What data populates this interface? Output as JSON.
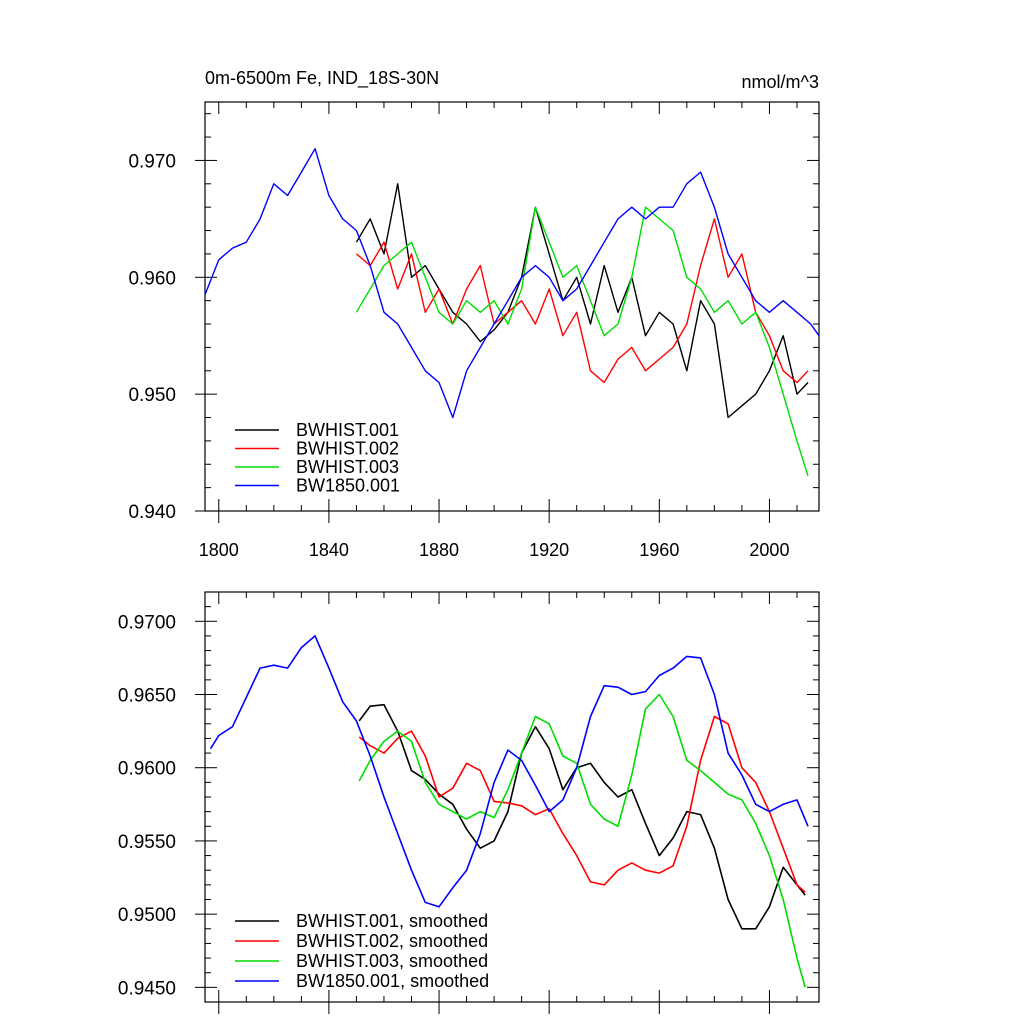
{
  "chart_data": [
    {
      "type": "line",
      "title": "0m-6500m Fe, IND_18S-30N",
      "units": "nmol/m^3",
      "xlim": [
        1795,
        2018
      ],
      "ylim": [
        0.94,
        0.975
      ],
      "xticks": [
        1800,
        1840,
        1880,
        1920,
        1960,
        2000
      ],
      "xtick_labels": [
        "1800",
        "1840",
        "1880",
        "1920",
        "1960",
        "2000"
      ],
      "yticks": [
        0.94,
        0.95,
        0.96,
        0.97
      ],
      "ytick_labels": [
        "0.940",
        "0.950",
        "0.960",
        "0.970"
      ],
      "legend_position": "bottom-left",
      "series": [
        {
          "name": "BWHIST.001",
          "color": "#000000",
          "x": [
            1850,
            1855,
            1860,
            1865,
            1870,
            1875,
            1880,
            1885,
            1890,
            1895,
            1900,
            1905,
            1910,
            1915,
            1920,
            1925,
            1930,
            1935,
            1940,
            1945,
            1950,
            1955,
            1960,
            1965,
            1970,
            1975,
            1980,
            1985,
            1990,
            1995,
            2000,
            2005,
            2010,
            2014
          ],
          "y": [
            0.963,
            0.965,
            0.962,
            0.968,
            0.96,
            0.961,
            0.959,
            0.957,
            0.956,
            0.9545,
            0.9555,
            0.957,
            0.96,
            0.966,
            0.962,
            0.958,
            0.96,
            0.956,
            0.961,
            0.957,
            0.96,
            0.955,
            0.957,
            0.956,
            0.952,
            0.958,
            0.956,
            0.948,
            0.949,
            0.95,
            0.952,
            0.955,
            0.95,
            0.951
          ]
        },
        {
          "name": "BWHIST.002",
          "color": "#ff0000",
          "x": [
            1850,
            1855,
            1860,
            1865,
            1870,
            1875,
            1880,
            1885,
            1890,
            1895,
            1900,
            1905,
            1910,
            1915,
            1920,
            1925,
            1930,
            1935,
            1940,
            1945,
            1950,
            1955,
            1960,
            1965,
            1970,
            1975,
            1980,
            1985,
            1990,
            1995,
            2000,
            2005,
            2010,
            2014
          ],
          "y": [
            0.962,
            0.961,
            0.963,
            0.959,
            0.962,
            0.957,
            0.959,
            0.956,
            0.959,
            0.961,
            0.956,
            0.957,
            0.958,
            0.956,
            0.959,
            0.955,
            0.957,
            0.952,
            0.951,
            0.953,
            0.954,
            0.952,
            0.953,
            0.954,
            0.956,
            0.961,
            0.965,
            0.96,
            0.962,
            0.957,
            0.955,
            0.952,
            0.951,
            0.952
          ]
        },
        {
          "name": "BWHIST.003",
          "color": "#00dd00",
          "x": [
            1850,
            1855,
            1860,
            1865,
            1870,
            1875,
            1880,
            1885,
            1890,
            1895,
            1900,
            1905,
            1910,
            1915,
            1920,
            1925,
            1930,
            1935,
            1940,
            1945,
            1950,
            1955,
            1960,
            1965,
            1970,
            1975,
            1980,
            1985,
            1990,
            1995,
            2000,
            2005,
            2010,
            2014
          ],
          "y": [
            0.957,
            0.959,
            0.961,
            0.962,
            0.963,
            0.96,
            0.957,
            0.956,
            0.958,
            0.957,
            0.958,
            0.956,
            0.959,
            0.966,
            0.963,
            0.96,
            0.961,
            0.958,
            0.955,
            0.956,
            0.96,
            0.966,
            0.965,
            0.964,
            0.96,
            0.959,
            0.957,
            0.958,
            0.956,
            0.957,
            0.954,
            0.95,
            0.946,
            0.943
          ]
        },
        {
          "name": "BW1850.001",
          "color": "#0000ff",
          "x": [
            1795,
            1800,
            1805,
            1810,
            1815,
            1820,
            1825,
            1830,
            1835,
            1840,
            1845,
            1850,
            1855,
            1860,
            1865,
            1870,
            1875,
            1880,
            1885,
            1890,
            1895,
            1900,
            1905,
            1910,
            1915,
            1920,
            1925,
            1930,
            1935,
            1940,
            1945,
            1950,
            1955,
            1960,
            1965,
            1970,
            1975,
            1980,
            1985,
            1990,
            1995,
            2000,
            2005,
            2010,
            2015,
            2018
          ],
          "y": [
            0.9585,
            0.9615,
            0.9625,
            0.963,
            0.965,
            0.968,
            0.967,
            0.969,
            0.971,
            0.967,
            0.965,
            0.964,
            0.961,
            0.957,
            0.956,
            0.954,
            0.952,
            0.951,
            0.948,
            0.952,
            0.954,
            0.956,
            0.958,
            0.96,
            0.961,
            0.96,
            0.958,
            0.959,
            0.961,
            0.963,
            0.965,
            0.966,
            0.965,
            0.966,
            0.966,
            0.968,
            0.969,
            0.966,
            0.962,
            0.96,
            0.958,
            0.957,
            0.958,
            0.957,
            0.956,
            0.955
          ]
        }
      ]
    },
    {
      "type": "line",
      "xlim": [
        1795,
        2018
      ],
      "ylim": [
        0.944,
        0.972
      ],
      "xticks": [
        1800,
        1840,
        1880,
        1920,
        1960,
        2000
      ],
      "yticks": [
        0.945,
        0.95,
        0.955,
        0.96,
        0.965,
        0.97
      ],
      "ytick_labels": [
        "0.9450",
        "0.9500",
        "0.9550",
        "0.9600",
        "0.9650",
        "0.9700"
      ],
      "legend_position": "bottom-left",
      "series": [
        {
          "name": "BWHIST.001, smoothed",
          "color": "#000000",
          "x": [
            1851,
            1855,
            1860,
            1865,
            1870,
            1875,
            1880,
            1885,
            1890,
            1895,
            1900,
            1905,
            1910,
            1915,
            1920,
            1925,
            1930,
            1935,
            1940,
            1945,
            1950,
            1955,
            1960,
            1965,
            1970,
            1975,
            1980,
            1985,
            1990,
            1995,
            2000,
            2005,
            2010,
            2013
          ],
          "y": [
            0.9632,
            0.9642,
            0.9643,
            0.9625,
            0.9598,
            0.9592,
            0.9582,
            0.9575,
            0.9558,
            0.9545,
            0.955,
            0.957,
            0.961,
            0.9628,
            0.9613,
            0.9585,
            0.96,
            0.9603,
            0.959,
            0.958,
            0.9585,
            0.9562,
            0.954,
            0.9552,
            0.957,
            0.9568,
            0.9545,
            0.951,
            0.949,
            0.949,
            0.9505,
            0.9532,
            0.952,
            0.9513
          ]
        },
        {
          "name": "BWHIST.002, smoothed",
          "color": "#ff0000",
          "x": [
            1851,
            1855,
            1860,
            1865,
            1870,
            1875,
            1880,
            1885,
            1890,
            1895,
            1900,
            1905,
            1910,
            1915,
            1920,
            1925,
            1930,
            1935,
            1940,
            1945,
            1950,
            1955,
            1960,
            1965,
            1970,
            1975,
            1980,
            1985,
            1990,
            1995,
            2000,
            2005,
            2010,
            2013
          ],
          "y": [
            0.9621,
            0.9615,
            0.961,
            0.962,
            0.9625,
            0.9608,
            0.958,
            0.9586,
            0.9603,
            0.9598,
            0.9577,
            0.9576,
            0.9574,
            0.9568,
            0.9572,
            0.9555,
            0.954,
            0.9522,
            0.952,
            0.953,
            0.9535,
            0.953,
            0.9528,
            0.9533,
            0.956,
            0.9605,
            0.9635,
            0.963,
            0.96,
            0.959,
            0.957,
            0.9545,
            0.952,
            0.9515
          ]
        },
        {
          "name": "BWHIST.003, smoothed",
          "color": "#00dd00",
          "x": [
            1851,
            1855,
            1860,
            1865,
            1870,
            1875,
            1880,
            1885,
            1890,
            1895,
            1900,
            1905,
            1910,
            1915,
            1920,
            1925,
            1930,
            1935,
            1940,
            1945,
            1950,
            1955,
            1960,
            1965,
            1970,
            1975,
            1980,
            1985,
            1990,
            1995,
            2000,
            2005,
            2010,
            2013
          ],
          "y": [
            0.9591,
            0.9605,
            0.9618,
            0.9625,
            0.9618,
            0.959,
            0.9575,
            0.957,
            0.9565,
            0.957,
            0.9566,
            0.9585,
            0.961,
            0.9635,
            0.963,
            0.9608,
            0.9603,
            0.9575,
            0.9565,
            0.956,
            0.9595,
            0.964,
            0.965,
            0.9635,
            0.9605,
            0.9598,
            0.959,
            0.9582,
            0.9578,
            0.9562,
            0.954,
            0.951,
            0.947,
            0.945
          ]
        },
        {
          "name": "BW1850.001, smoothed",
          "color": "#0000ff",
          "x": [
            1797,
            1800,
            1805,
            1810,
            1815,
            1820,
            1825,
            1830,
            1835,
            1840,
            1845,
            1850,
            1855,
            1860,
            1865,
            1870,
            1875,
            1880,
            1885,
            1890,
            1895,
            1900,
            1905,
            1910,
            1915,
            1920,
            1925,
            1930,
            1935,
            1940,
            1945,
            1950,
            1955,
            1960,
            1965,
            1970,
            1975,
            1980,
            1985,
            1990,
            1995,
            2000,
            2005,
            2010,
            2014
          ],
          "y": [
            0.9613,
            0.9622,
            0.9628,
            0.9648,
            0.9668,
            0.967,
            0.9668,
            0.9682,
            0.969,
            0.9668,
            0.9645,
            0.9632,
            0.9608,
            0.958,
            0.9555,
            0.953,
            0.9508,
            0.9505,
            0.9518,
            0.953,
            0.9555,
            0.959,
            0.9612,
            0.9605,
            0.9588,
            0.957,
            0.9578,
            0.96,
            0.9635,
            0.9656,
            0.9655,
            0.965,
            0.9652,
            0.9663,
            0.9668,
            0.9676,
            0.9675,
            0.965,
            0.961,
            0.9595,
            0.9575,
            0.957,
            0.9575,
            0.9578,
            0.956
          ]
        }
      ]
    }
  ]
}
